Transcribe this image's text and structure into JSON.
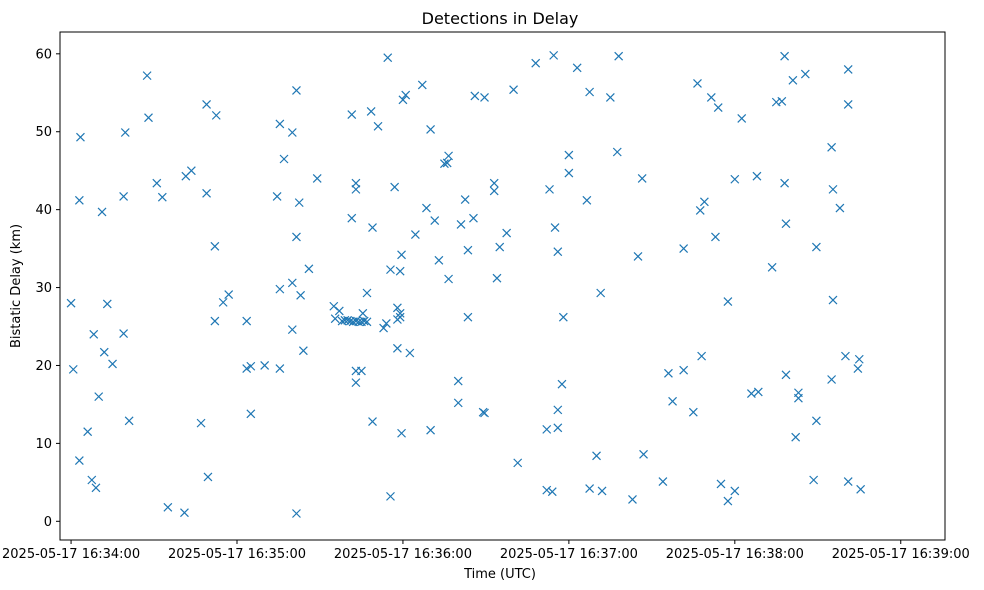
{
  "chart_data": {
    "type": "scatter",
    "title": "Detections in Delay",
    "xlabel": "Time (UTC)",
    "ylabel": "Bistatic Delay (km)",
    "x_is_time": true,
    "xlim": [
      "2025-05-17 16:33:56",
      "2025-05-17 16:39:16"
    ],
    "ylim": [
      -2.4,
      62.8
    ],
    "x_ticks": [
      "2025-05-17 16:34:00",
      "2025-05-17 16:35:00",
      "2025-05-17 16:36:00",
      "2025-05-17 16:37:00",
      "2025-05-17 16:38:00",
      "2025-05-17 16:39:00"
    ],
    "y_ticks": [
      0,
      10,
      20,
      30,
      40,
      50,
      60
    ],
    "grid": false,
    "marker": "x",
    "color": "#1f77b4",
    "series": [
      {
        "points": [
          [
            "2025-05-17 16:34:00.0",
            28.0
          ],
          [
            "2025-05-17 16:34:00.8",
            19.5
          ],
          [
            "2025-05-17 16:34:03.0",
            41.2
          ],
          [
            "2025-05-17 16:34:03.4",
            49.3
          ],
          [
            "2025-05-17 16:34:03.0",
            7.8
          ],
          [
            "2025-05-17 16:34:06.0",
            11.5
          ],
          [
            "2025-05-17 16:34:07.5",
            5.3
          ],
          [
            "2025-05-17 16:34:09.0",
            4.3
          ],
          [
            "2025-05-17 16:34:08.2",
            24.0
          ],
          [
            "2025-05-17 16:34:10.0",
            16.0
          ],
          [
            "2025-05-17 16:34:11.2",
            39.7
          ],
          [
            "2025-05-17 16:34:12.0",
            21.7
          ],
          [
            "2025-05-17 16:34:13.1",
            27.9
          ],
          [
            "2025-05-17 16:34:15.0",
            20.2
          ],
          [
            "2025-05-17 16:34:19.0",
            41.7
          ],
          [
            "2025-05-17 16:34:19.6",
            49.9
          ],
          [
            "2025-05-17 16:34:19.0",
            24.1
          ],
          [
            "2025-05-17 16:34:21.0",
            12.9
          ],
          [
            "2025-05-17 16:34:27.5",
            57.2
          ],
          [
            "2025-05-17 16:34:28.0",
            51.8
          ],
          [
            "2025-05-17 16:34:31.0",
            43.4
          ],
          [
            "2025-05-17 16:34:33.0",
            41.6
          ],
          [
            "2025-05-17 16:34:35.0",
            1.8
          ],
          [
            "2025-05-17 16:34:41.0",
            1.1
          ],
          [
            "2025-05-17 16:34:41.5",
            44.3
          ],
          [
            "2025-05-17 16:34:43.5",
            45.0
          ],
          [
            "2025-05-17 16:34:47.0",
            12.6
          ],
          [
            "2025-05-17 16:34:49.0",
            53.5
          ],
          [
            "2025-05-17 16:34:49.0",
            42.1
          ],
          [
            "2025-05-17 16:34:49.5",
            5.7
          ],
          [
            "2025-05-17 16:34:52.5",
            52.1
          ],
          [
            "2025-05-17 16:34:52.0",
            35.3
          ],
          [
            "2025-05-17 16:34:52.0",
            25.7
          ],
          [
            "2025-05-17 16:34:55.0",
            28.1
          ],
          [
            "2025-05-17 16:34:57.0",
            29.1
          ],
          [
            "2025-05-17 16:35:03.5",
            25.7
          ],
          [
            "2025-05-17 16:35:03.5",
            19.6
          ],
          [
            "2025-05-17 16:35:05.0",
            19.9
          ],
          [
            "2025-05-17 16:35:05.0",
            13.8
          ],
          [
            "2025-05-17 16:35:10.0",
            20.0
          ],
          [
            "2025-05-17 16:35:14.5",
            41.7
          ],
          [
            "2025-05-17 16:35:15.5",
            51.0
          ],
          [
            "2025-05-17 16:35:17.0",
            46.5
          ],
          [
            "2025-05-17 16:35:15.5",
            29.8
          ],
          [
            "2025-05-17 16:35:15.5",
            19.6
          ],
          [
            "2025-05-17 16:35:20.0",
            49.9
          ],
          [
            "2025-05-17 16:35:20.0",
            30.6
          ],
          [
            "2025-05-17 16:35:20.0",
            24.6
          ],
          [
            "2025-05-17 16:35:21.5",
            55.3
          ],
          [
            "2025-05-17 16:35:21.5",
            36.5
          ],
          [
            "2025-05-17 16:35:22.5",
            40.9
          ],
          [
            "2025-05-17 16:35:23.0",
            29.0
          ],
          [
            "2025-05-17 16:35:24.0",
            21.9
          ],
          [
            "2025-05-17 16:35:26.0",
            32.4
          ],
          [
            "2025-05-17 16:35:29.0",
            44.0
          ],
          [
            "2025-05-17 16:35:21.5",
            1.0
          ],
          [
            "2025-05-17 16:35:35.0",
            27.6
          ],
          [
            "2025-05-17 16:35:37.0",
            27.0
          ],
          [
            "2025-05-17 16:35:35.5",
            26.0
          ],
          [
            "2025-05-17 16:35:38.0",
            25.7
          ],
          [
            "2025-05-17 16:35:39.0",
            25.8
          ],
          [
            "2025-05-17 16:35:40.0",
            25.8
          ],
          [
            "2025-05-17 16:35:41.0",
            25.7
          ],
          [
            "2025-05-17 16:35:42.0",
            25.6
          ],
          [
            "2025-05-17 16:35:43.0",
            25.7
          ],
          [
            "2025-05-17 16:35:44.0",
            25.6
          ],
          [
            "2025-05-17 16:35:45.0",
            25.6
          ],
          [
            "2025-05-17 16:35:46.0",
            25.7
          ],
          [
            "2025-05-17 16:35:47.0",
            25.6
          ],
          [
            "2025-05-17 16:35:45.5",
            26.7
          ],
          [
            "2025-05-17 16:35:41.5",
            52.2
          ],
          [
            "2025-05-17 16:35:43.0",
            43.4
          ],
          [
            "2025-05-17 16:35:43.0",
            42.6
          ],
          [
            "2025-05-17 16:35:41.5",
            38.9
          ],
          [
            "2025-05-17 16:35:43.0",
            19.3
          ],
          [
            "2025-05-17 16:35:43.0",
            17.8
          ],
          [
            "2025-05-17 16:35:45.0",
            19.3
          ],
          [
            "2025-05-17 16:35:47.0",
            29.3
          ],
          [
            "2025-05-17 16:35:48.5",
            52.6
          ],
          [
            "2025-05-17 16:35:49.0",
            37.7
          ],
          [
            "2025-05-17 16:35:51.0",
            50.7
          ],
          [
            "2025-05-17 16:35:53.0",
            24.8
          ],
          [
            "2025-05-17 16:35:54.0",
            25.4
          ],
          [
            "2025-05-17 16:35:49.0",
            12.8
          ],
          [
            "2025-05-17 16:35:54.5",
            59.5
          ],
          [
            "2025-05-17 16:35:55.5",
            32.3
          ],
          [
            "2025-05-17 16:35:57.0",
            42.9
          ],
          [
            "2025-05-17 16:35:55.5",
            3.2
          ],
          [
            "2025-05-17 16:35:58.0",
            27.4
          ],
          [
            "2025-05-17 16:35:58.0",
            25.9
          ],
          [
            "2025-05-17 16:35:59.0",
            26.7
          ],
          [
            "2025-05-17 16:35:59.0",
            26.2
          ],
          [
            "2025-05-17 16:35:59.0",
            32.1
          ],
          [
            "2025-05-17 16:35:59.5",
            34.2
          ],
          [
            "2025-05-17 16:35:58.0",
            22.2
          ],
          [
            "2025-05-17 16:35:59.5",
            11.3
          ],
          [
            "2025-05-17 16:36:00.0",
            54.1
          ],
          [
            "2025-05-17 16:36:01.0",
            54.7
          ],
          [
            "2025-05-17 16:36:02.5",
            21.6
          ],
          [
            "2025-05-17 16:36:04.5",
            36.8
          ],
          [
            "2025-05-17 16:36:07.0",
            56.0
          ],
          [
            "2025-05-17 16:36:08.5",
            40.2
          ],
          [
            "2025-05-17 16:36:10.0",
            50.3
          ],
          [
            "2025-05-17 16:36:11.5",
            38.6
          ],
          [
            "2025-05-17 16:36:10.0",
            11.7
          ],
          [
            "2025-05-17 16:36:13.0",
            33.5
          ],
          [
            "2025-05-17 16:36:15.0",
            45.9
          ],
          [
            "2025-05-17 16:36:16.5",
            46.9
          ],
          [
            "2025-05-17 16:36:16.0",
            46.0
          ],
          [
            "2025-05-17 16:36:16.5",
            31.1
          ],
          [
            "2025-05-17 16:36:20.0",
            18.0
          ],
          [
            "2025-05-17 16:36:20.0",
            15.2
          ],
          [
            "2025-05-17 16:36:21.0",
            38.1
          ],
          [
            "2025-05-17 16:36:22.5",
            41.3
          ],
          [
            "2025-05-17 16:36:23.5",
            34.8
          ],
          [
            "2025-05-17 16:36:23.5",
            26.2
          ],
          [
            "2025-05-17 16:36:25.5",
            38.9
          ],
          [
            "2025-05-17 16:36:26.0",
            54.6
          ],
          [
            "2025-05-17 16:36:29.5",
            54.4
          ],
          [
            "2025-05-17 16:36:29.0",
            14.0
          ],
          [
            "2025-05-17 16:36:29.5",
            13.9
          ],
          [
            "2025-05-17 16:36:33.0",
            43.4
          ],
          [
            "2025-05-17 16:36:33.0",
            42.4
          ],
          [
            "2025-05-17 16:36:34.0",
            31.2
          ],
          [
            "2025-05-17 16:36:35.0",
            35.2
          ],
          [
            "2025-05-17 16:36:37.5",
            37.0
          ],
          [
            "2025-05-17 16:36:40.0",
            55.4
          ],
          [
            "2025-05-17 16:36:41.5",
            7.5
          ],
          [
            "2025-05-17 16:36:48.0",
            58.8
          ],
          [
            "2025-05-17 16:36:53.0",
            42.6
          ],
          [
            "2025-05-17 16:36:52.0",
            11.8
          ],
          [
            "2025-05-17 16:36:52.0",
            4.0
          ],
          [
            "2025-05-17 16:36:54.0",
            3.8
          ],
          [
            "2025-05-17 16:36:54.5",
            59.8
          ],
          [
            "2025-05-17 16:36:55.0",
            37.7
          ],
          [
            "2025-05-17 16:36:56.0",
            34.6
          ],
          [
            "2025-05-17 16:36:56.0",
            14.3
          ],
          [
            "2025-05-17 16:36:56.0",
            12.0
          ],
          [
            "2025-05-17 16:36:57.5",
            17.6
          ],
          [
            "2025-05-17 16:36:58.0",
            26.2
          ],
          [
            "2025-05-17 16:37:00.0",
            47.0
          ],
          [
            "2025-05-17 16:37:00.0",
            44.7
          ],
          [
            "2025-05-17 16:37:03.0",
            58.2
          ],
          [
            "2025-05-17 16:37:06.5",
            41.2
          ],
          [
            "2025-05-17 16:37:07.5",
            55.1
          ],
          [
            "2025-05-17 16:37:07.5",
            4.2
          ],
          [
            "2025-05-17 16:37:10.0",
            8.4
          ],
          [
            "2025-05-17 16:37:11.5",
            29.3
          ],
          [
            "2025-05-17 16:37:12.0",
            3.9
          ],
          [
            "2025-05-17 16:37:15.0",
            54.4
          ],
          [
            "2025-05-17 16:37:17.5",
            47.4
          ],
          [
            "2025-05-17 16:37:18.0",
            59.7
          ],
          [
            "2025-05-17 16:37:23.0",
            2.8
          ],
          [
            "2025-05-17 16:37:25.0",
            34.0
          ],
          [
            "2025-05-17 16:37:26.5",
            44.0
          ],
          [
            "2025-05-17 16:37:27.0",
            8.6
          ],
          [
            "2025-05-17 16:37:34.0",
            5.1
          ],
          [
            "2025-05-17 16:37:36.0",
            19.0
          ],
          [
            "2025-05-17 16:37:37.5",
            15.4
          ],
          [
            "2025-05-17 16:37:41.5",
            35.0
          ],
          [
            "2025-05-17 16:37:41.5",
            19.4
          ],
          [
            "2025-05-17 16:37:45.0",
            14.0
          ],
          [
            "2025-05-17 16:37:46.5",
            56.2
          ],
          [
            "2025-05-17 16:37:47.5",
            39.9
          ],
          [
            "2025-05-17 16:37:48.0",
            21.2
          ],
          [
            "2025-05-17 16:37:49.0",
            41.0
          ],
          [
            "2025-05-17 16:37:51.5",
            54.4
          ],
          [
            "2025-05-17 16:37:53.0",
            36.5
          ],
          [
            "2025-05-17 16:37:54.0",
            53.1
          ],
          [
            "2025-05-17 16:37:55.0",
            4.8
          ],
          [
            "2025-05-17 16:37:57.5",
            28.2
          ],
          [
            "2025-05-17 16:37:57.5",
            2.6
          ],
          [
            "2025-05-17 16:38:00.0",
            43.9
          ],
          [
            "2025-05-17 16:38:00.0",
            3.9
          ],
          [
            "2025-05-17 16:38:02.5",
            51.7
          ],
          [
            "2025-05-17 16:38:08.0",
            44.3
          ],
          [
            "2025-05-17 16:38:06.0",
            16.4
          ],
          [
            "2025-05-17 16:38:08.5",
            16.6
          ],
          [
            "2025-05-17 16:38:13.5",
            32.6
          ],
          [
            "2025-05-17 16:38:15.0",
            53.8
          ],
          [
            "2025-05-17 16:38:17.0",
            53.9
          ],
          [
            "2025-05-17 16:38:18.0",
            59.7
          ],
          [
            "2025-05-17 16:38:18.0",
            43.4
          ],
          [
            "2025-05-17 16:38:18.5",
            38.2
          ],
          [
            "2025-05-17 16:38:18.5",
            18.8
          ],
          [
            "2025-05-17 16:38:21.0",
            56.6
          ],
          [
            "2025-05-17 16:38:22.0",
            10.8
          ],
          [
            "2025-05-17 16:38:23.0",
            15.8
          ],
          [
            "2025-05-17 16:38:23.0",
            16.5
          ],
          [
            "2025-05-17 16:38:25.5",
            57.4
          ],
          [
            "2025-05-17 16:38:28.5",
            5.3
          ],
          [
            "2025-05-17 16:38:29.5",
            35.2
          ],
          [
            "2025-05-17 16:38:29.5",
            12.9
          ],
          [
            "2025-05-17 16:38:35.0",
            48.0
          ],
          [
            "2025-05-17 16:38:35.5",
            42.6
          ],
          [
            "2025-05-17 16:38:35.5",
            28.4
          ],
          [
            "2025-05-17 16:38:35.0",
            18.2
          ],
          [
            "2025-05-17 16:38:38.0",
            40.2
          ],
          [
            "2025-05-17 16:38:40.0",
            21.2
          ],
          [
            "2025-05-17 16:38:41.0",
            58.0
          ],
          [
            "2025-05-17 16:38:41.0",
            53.5
          ],
          [
            "2025-05-17 16:38:41.0",
            5.1
          ],
          [
            "2025-05-17 16:38:44.5",
            19.6
          ],
          [
            "2025-05-17 16:38:45.0",
            20.8
          ],
          [
            "2025-05-17 16:38:45.5",
            4.1
          ]
        ]
      }
    ]
  }
}
